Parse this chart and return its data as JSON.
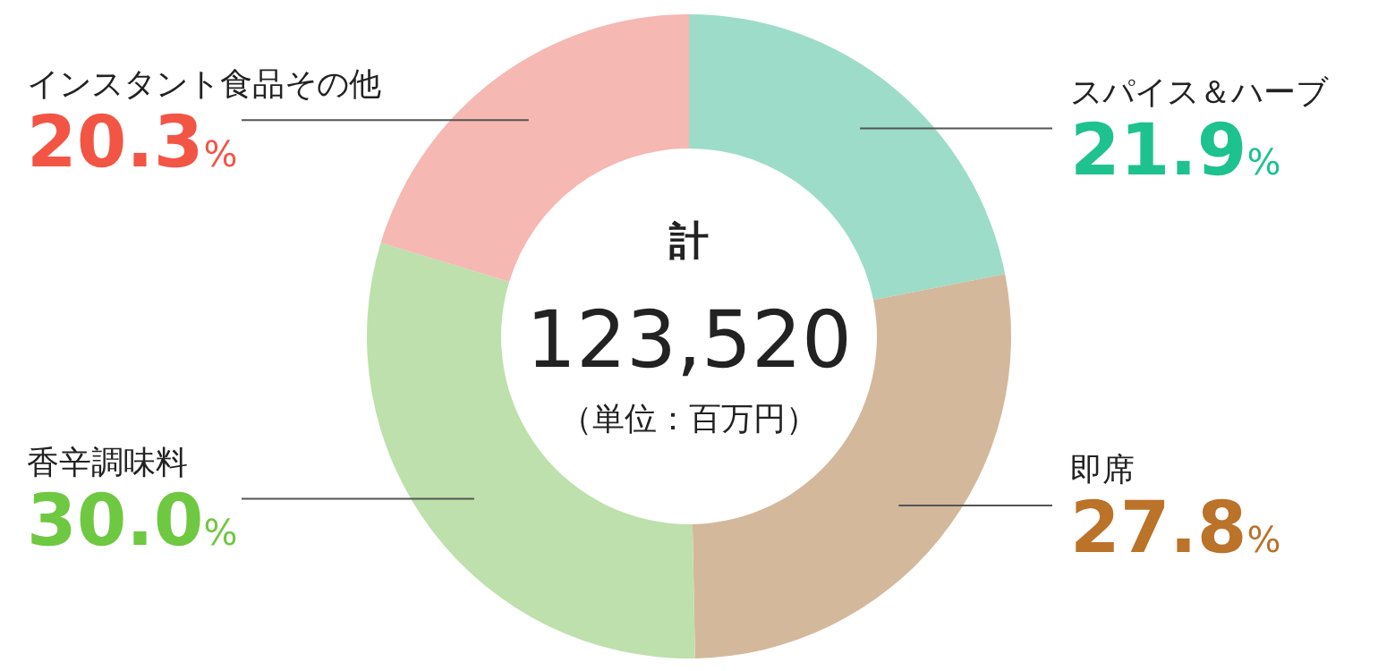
{
  "chart_data": {
    "type": "donut",
    "categories": [
      "スパイス＆ハーブ",
      "即席",
      "香辛調味料",
      "インスタント食品その他"
    ],
    "values": [
      21.9,
      27.8,
      30.0,
      20.3
    ],
    "value_labels": [
      "21.9%",
      "27.8%",
      "30.0%",
      "20.3%"
    ],
    "colors": [
      "#9ddcc8",
      "#d4b89c",
      "#bee0ac",
      "#f5b8b2"
    ],
    "annotations": [
      "計",
      "123,520",
      "（単位：百万円）"
    ]
  }
}
